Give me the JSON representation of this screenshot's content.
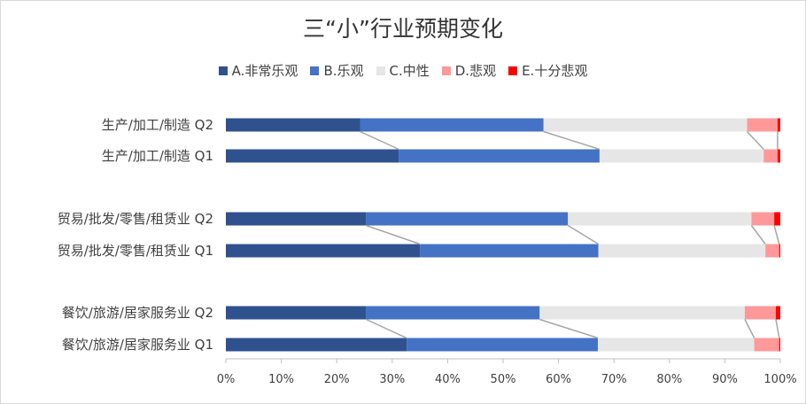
{
  "chart_data": {
    "type": "bar",
    "orientation": "horizontal",
    "stacked": true,
    "percent": true,
    "title": "三“小”行业预期变化",
    "legend_position": "top",
    "categories": [
      "生产/加工/制造 Q2",
      "生产/加工/制造 Q1",
      "贸易/批发/零售/租赁业 Q2",
      "贸易/批发/零售/租赁业 Q1",
      "餐饮/旅游/居家服务业 Q2",
      "餐饮/旅游/居家服务业 Q1"
    ],
    "series": [
      {
        "name": "A.非常乐观",
        "color": "#2f528f",
        "values": [
          24.2,
          31.2,
          25.3,
          35.0,
          25.3,
          32.6
        ]
      },
      {
        "name": "B.乐观",
        "color": "#4472c4",
        "values": [
          33.1,
          36.2,
          36.4,
          32.2,
          31.3,
          34.5
        ]
      },
      {
        "name": "C.中性",
        "color": "#e7e6e6",
        "values": [
          36.7,
          29.6,
          33.1,
          30.1,
          37.0,
          28.2
        ]
      },
      {
        "name": "D.悲观",
        "color": "#ff9999",
        "values": [
          5.5,
          2.5,
          4.1,
          2.5,
          5.6,
          4.5
        ]
      },
      {
        "name": "E.十分悲观",
        "color": "#ff0000",
        "values": [
          0.5,
          0.5,
          1.1,
          0.2,
          0.8,
          0.2
        ]
      }
    ],
    "xlim": [
      0,
      100
    ],
    "x_ticks": [
      "0%",
      "10%",
      "20%",
      "30%",
      "40%",
      "50%",
      "60%",
      "70%",
      "80%",
      "90%",
      "100%"
    ],
    "series_lines": true,
    "grid": false
  }
}
